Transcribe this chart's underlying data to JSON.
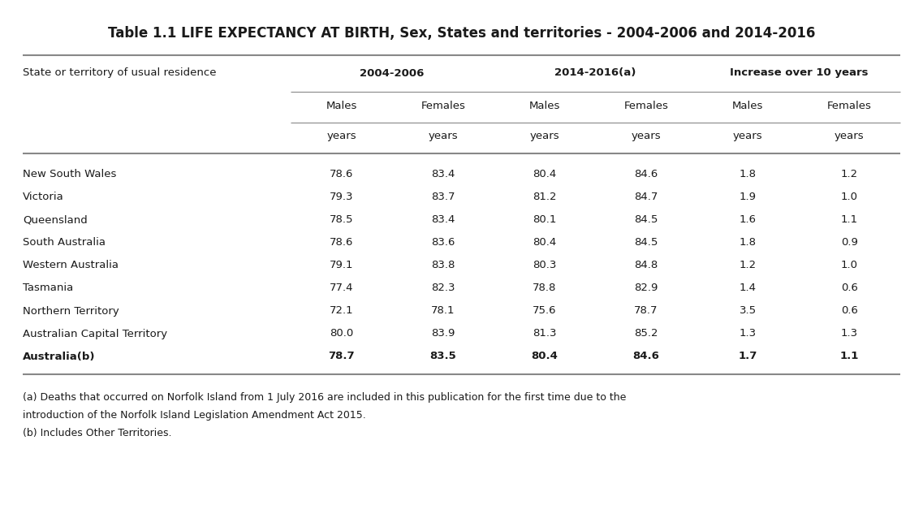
{
  "title": "Table 1.1 LIFE EXPECTANCY AT BIRTH, Sex, States and territories - 2004-2006 and 2014-2016",
  "col_group_headers": [
    "2004-2006",
    "2014-2016(a)",
    "Increase over 10 years"
  ],
  "sub_headers_row1": [
    "Males",
    "Females",
    "Males",
    "Females",
    "Males",
    "Females"
  ],
  "sub_headers_row2": [
    "years",
    "years",
    "years",
    "years",
    "years",
    "years"
  ],
  "first_col_header": "State or territory of usual residence",
  "rows": [
    {
      "state": "New South Wales",
      "bold": false,
      "values": [
        "78.6",
        "83.4",
        "80.4",
        "84.6",
        "1.8",
        "1.2"
      ]
    },
    {
      "state": "Victoria",
      "bold": false,
      "values": [
        "79.3",
        "83.7",
        "81.2",
        "84.7",
        "1.9",
        "1.0"
      ]
    },
    {
      "state": "Queensland",
      "bold": false,
      "values": [
        "78.5",
        "83.4",
        "80.1",
        "84.5",
        "1.6",
        "1.1"
      ]
    },
    {
      "state": "South Australia",
      "bold": false,
      "values": [
        "78.6",
        "83.6",
        "80.4",
        "84.5",
        "1.8",
        "0.9"
      ]
    },
    {
      "state": "Western Australia",
      "bold": false,
      "values": [
        "79.1",
        "83.8",
        "80.3",
        "84.8",
        "1.2",
        "1.0"
      ]
    },
    {
      "state": "Tasmania",
      "bold": false,
      "values": [
        "77.4",
        "82.3",
        "78.8",
        "82.9",
        "1.4",
        "0.6"
      ]
    },
    {
      "state": "Northern Territory",
      "bold": false,
      "values": [
        "72.1",
        "78.1",
        "75.6",
        "78.7",
        "3.5",
        "0.6"
      ]
    },
    {
      "state": "Australian Capital Territory",
      "bold": false,
      "values": [
        "80.0",
        "83.9",
        "81.3",
        "85.2",
        "1.3",
        "1.3"
      ]
    },
    {
      "state": "Australia(b)",
      "bold": true,
      "values": [
        "78.7",
        "83.5",
        "80.4",
        "84.6",
        "1.7",
        "1.1"
      ]
    }
  ],
  "footnote1": "(a) Deaths that occurred on Norfolk Island from 1 July 2016 are included in this publication for the first time due to the",
  "footnote2": "introduction of the Norfolk Island Legislation Amendment Act 2015.",
  "footnote3": "(b) Includes Other Territories.",
  "bg_color": "#ffffff",
  "text_color": "#1a1a1a",
  "line_color": "#888888"
}
